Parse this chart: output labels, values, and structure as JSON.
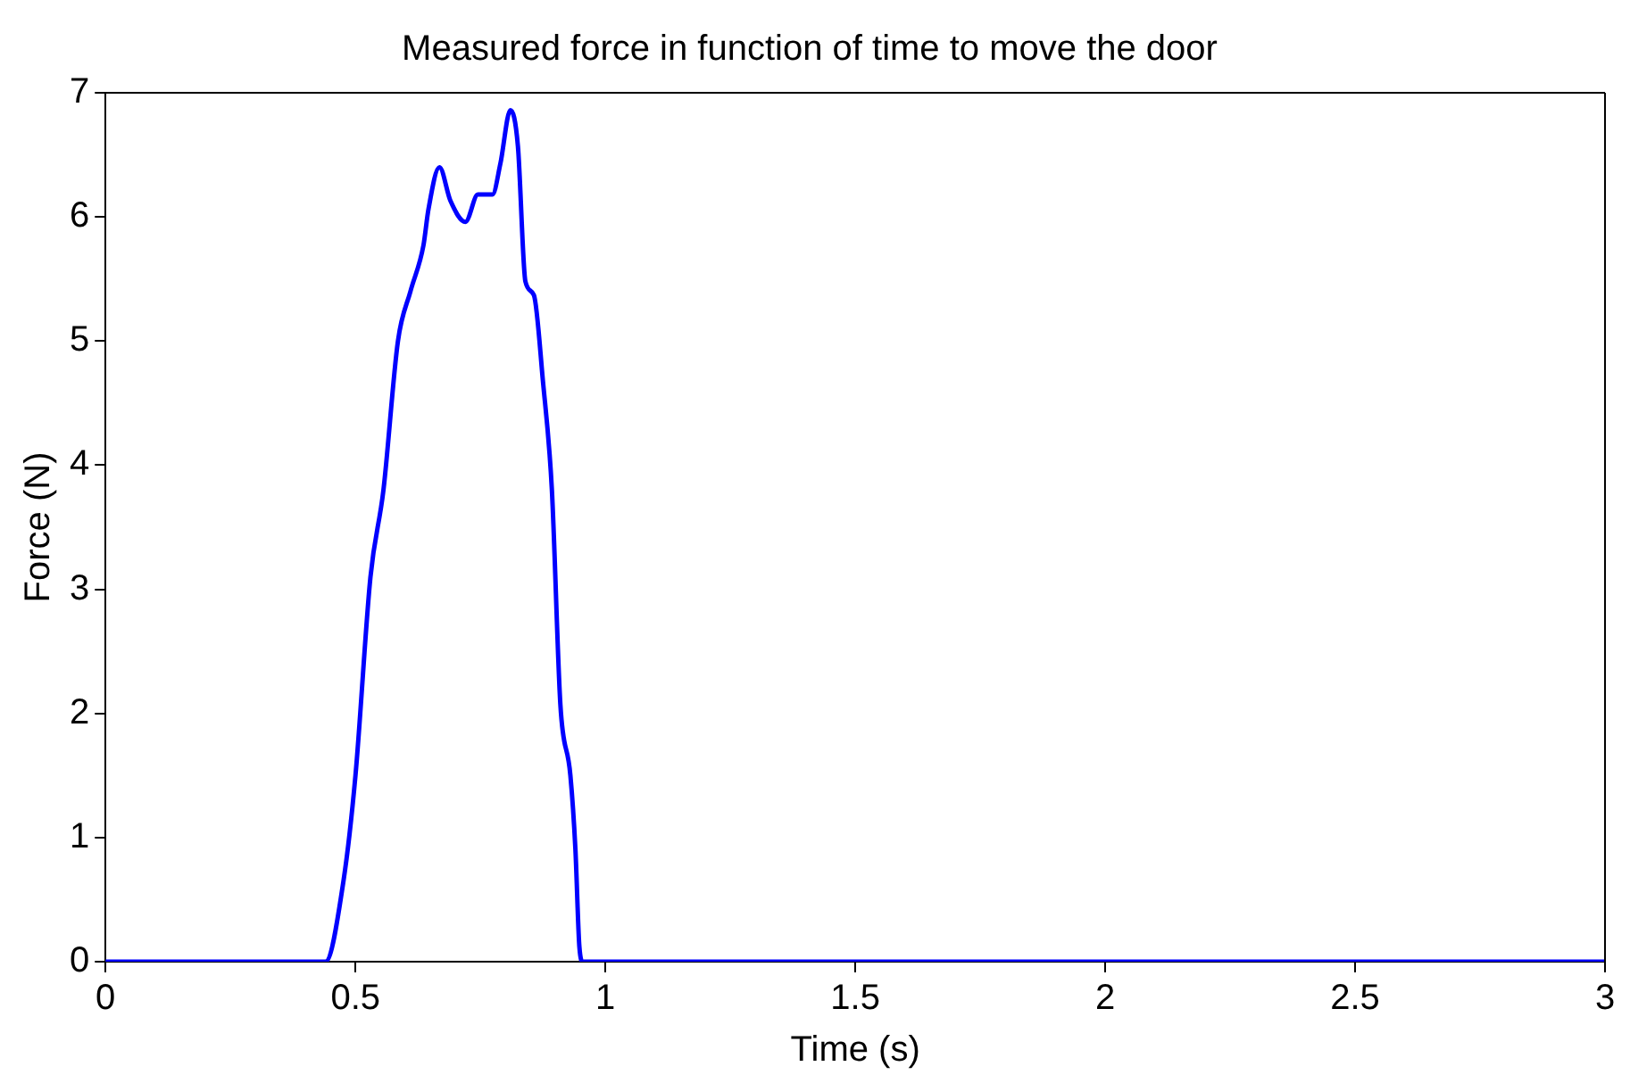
{
  "chart_data": {
    "type": "line",
    "title": "Measured force in function of time to move the door",
    "xlabel": "Time (s)",
    "ylabel": "Force (N)",
    "x": [
      0,
      0.2,
      0.44,
      0.476,
      0.5,
      0.53,
      0.556,
      0.585,
      0.61,
      0.636,
      0.646,
      0.668,
      0.69,
      0.72,
      0.745,
      0.774,
      0.79,
      0.81,
      0.825,
      0.84,
      0.857,
      0.875,
      0.893,
      0.91,
      0.93,
      0.94,
      0.948,
      0.955,
      1.5,
      2,
      2.5,
      3
    ],
    "series": [
      {
        "color": "#0000ff",
        "values": [
          0,
          0,
          0,
          0.65,
          1.5,
          3.1,
          3.8,
          5.0,
          5.4,
          5.77,
          6.06,
          6.4,
          6.13,
          5.96,
          6.18,
          6.18,
          6.43,
          6.86,
          6.57,
          5.48,
          5.37,
          4.68,
          3.8,
          2.07,
          1.5,
          0.91,
          0.12,
          0,
          0,
          0,
          0,
          0
        ]
      }
    ],
    "xlim": [
      0,
      3
    ],
    "xticks": [
      0,
      0.5,
      1,
      1.5,
      2,
      2.5,
      3
    ],
    "ylim": [
      0,
      7
    ],
    "yticks": [
      0,
      1,
      2,
      3,
      4,
      5,
      6,
      7
    ],
    "grid": false,
    "legend": false,
    "marker": "none",
    "line_style": "solid"
  }
}
